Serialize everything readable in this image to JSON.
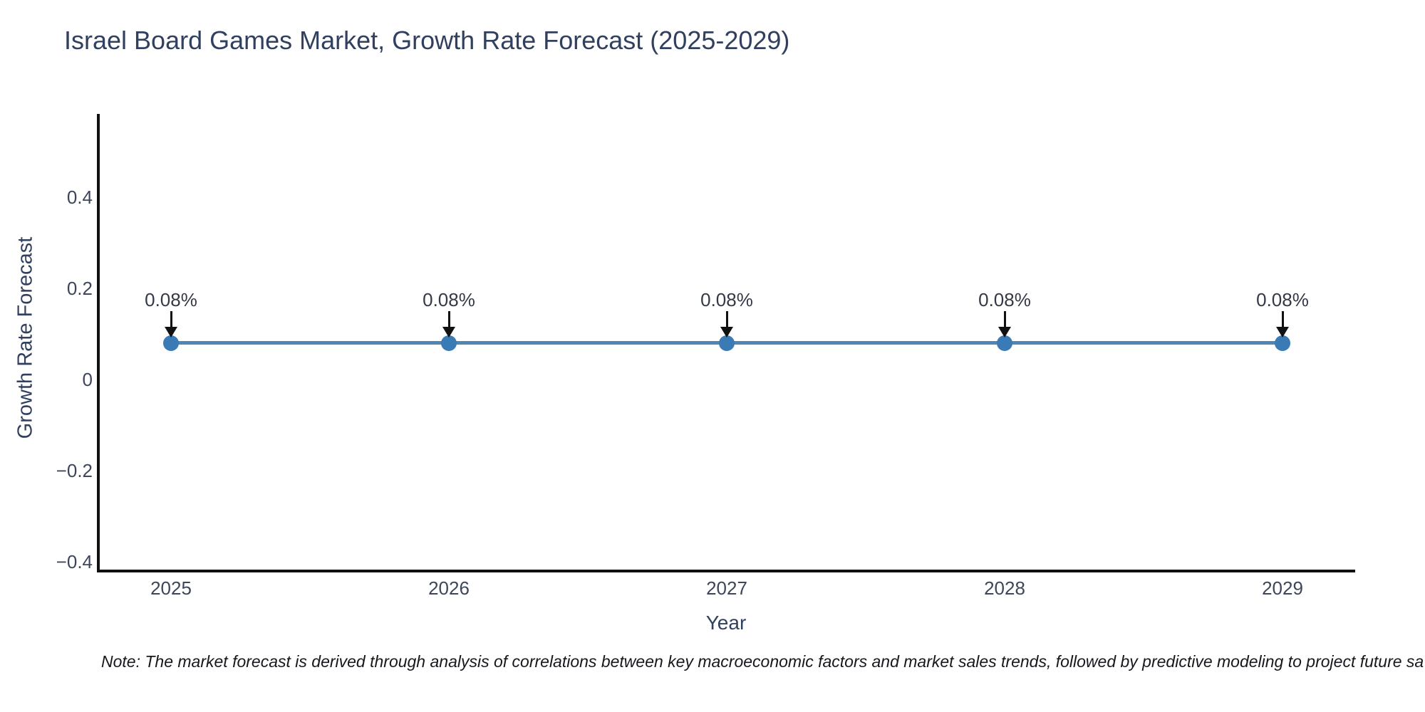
{
  "page": {
    "title": "Israel Board Games Market, Growth Rate Forecast (2025-2029)",
    "note": "Note: The market forecast is derived through analysis of correlations between key macroeconomic factors and market sales trends, followed by predictive modeling to project future sa"
  },
  "chart_data": {
    "type": "line",
    "title": "Israel Board Games Market, Growth Rate Forecast (2025-2029)",
    "categories": [
      "2025",
      "2026",
      "2027",
      "2028",
      "2029"
    ],
    "series": [
      {
        "name": "Growth Rate Forecast",
        "values": [
          0.08,
          0.08,
          0.08,
          0.08,
          0.08
        ]
      }
    ],
    "point_labels": [
      "0.08%",
      "0.08%",
      "0.08%",
      "0.08%",
      "0.08%"
    ],
    "xlabel": "Year",
    "ylabel": "Growth Rate Forecast",
    "yticks": [
      0.4,
      0.2,
      0,
      -0.2,
      -0.4
    ],
    "ylim": [
      -0.42,
      0.58
    ],
    "grid": false,
    "legend": "none",
    "annotation_style": "value label with downward black arrow onto each point",
    "colors": {
      "line": "#4e86b5",
      "marker": "#3a7ab5",
      "arrow": "#111111",
      "spine": "#111111",
      "title_text": "#31405e",
      "axis_text": "#3e4759",
      "note_text": "#16181d"
    }
  }
}
